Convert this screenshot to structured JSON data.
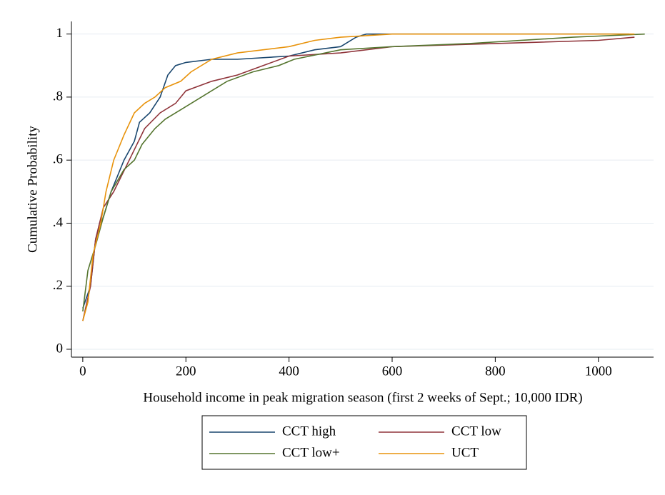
{
  "chart_data": {
    "type": "line",
    "x_label": "Household income in peak migration season (first 2 weeks of Sept.; 10,000 IDR)",
    "y_label": "Cumulative Probability",
    "xlim": [
      -22,
      1107
    ],
    "ylim": [
      -0.025,
      1.04
    ],
    "xticks": [
      0,
      200,
      400,
      600,
      800,
      1000
    ],
    "yticks": [
      0,
      {
        "value": 0.2,
        "label": ".2"
      },
      {
        "value": 0.4,
        "label": ".4"
      },
      {
        "value": 0.6,
        "label": ".6"
      },
      {
        "value": 0.8,
        "label": ".8"
      },
      1
    ],
    "grid": true,
    "legend": "bottom",
    "series": [
      {
        "name": "CCT high",
        "color": "#1a476f",
        "x": [
          0,
          15,
          25,
          40,
          55,
          80,
          100,
          110,
          130,
          150,
          165,
          180,
          200,
          250,
          300,
          400,
          450,
          500,
          530,
          550,
          1060
        ],
        "values": [
          0.13,
          0.2,
          0.35,
          0.42,
          0.5,
          0.6,
          0.66,
          0.72,
          0.75,
          0.8,
          0.87,
          0.9,
          0.91,
          0.92,
          0.92,
          0.93,
          0.95,
          0.96,
          0.99,
          1.0,
          1.0
        ]
      },
      {
        "name": "CCT low",
        "color": "#90353b",
        "x": [
          0,
          15,
          25,
          40,
          60,
          90,
          120,
          150,
          180,
          200,
          250,
          300,
          350,
          400,
          500,
          600,
          800,
          1000,
          1070
        ],
        "values": [
          0.09,
          0.2,
          0.35,
          0.45,
          0.5,
          0.6,
          0.7,
          0.75,
          0.78,
          0.82,
          0.85,
          0.87,
          0.9,
          0.93,
          0.94,
          0.96,
          0.97,
          0.98,
          0.99
        ]
      },
      {
        "name": "CCT low+",
        "color": "#55752f",
        "x": [
          0,
          10,
          25,
          40,
          55,
          80,
          100,
          115,
          140,
          160,
          200,
          230,
          280,
          330,
          380,
          410,
          500,
          600,
          750,
          950,
          1090
        ],
        "values": [
          0.12,
          0.25,
          0.33,
          0.42,
          0.5,
          0.57,
          0.6,
          0.65,
          0.7,
          0.73,
          0.77,
          0.8,
          0.85,
          0.88,
          0.9,
          0.92,
          0.95,
          0.96,
          0.97,
          0.99,
          1.0
        ]
      },
      {
        "name": "UCT",
        "color": "#e8930c",
        "x": [
          0,
          10,
          20,
          35,
          45,
          60,
          80,
          100,
          120,
          140,
          160,
          190,
          210,
          250,
          300,
          400,
          450,
          500,
          600,
          1070
        ],
        "values": [
          0.09,
          0.15,
          0.3,
          0.4,
          0.5,
          0.6,
          0.68,
          0.75,
          0.78,
          0.8,
          0.83,
          0.85,
          0.88,
          0.92,
          0.94,
          0.96,
          0.98,
          0.99,
          1.0,
          1.0
        ]
      }
    ]
  }
}
